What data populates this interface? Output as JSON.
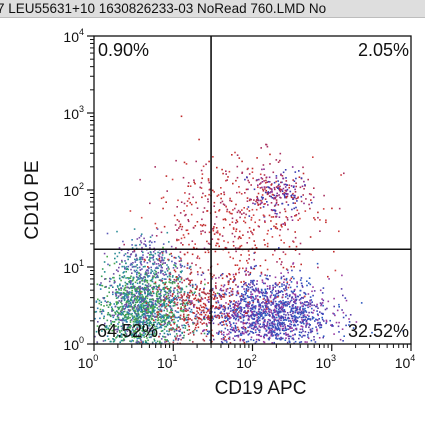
{
  "window": {
    "title": "7 LEU55631+10 1630826233-03 NoRead 760.LMD   No"
  },
  "chart_data": {
    "type": "scatter",
    "xlabel": "CD19 APC",
    "ylabel": "CD10 PE",
    "xscale": "log",
    "yscale": "log",
    "xlim": [
      1,
      10000
    ],
    "ylim": [
      1,
      10000
    ],
    "x_ticks": [
      {
        "base": "10",
        "exp": "0",
        "value": 1
      },
      {
        "base": "10",
        "exp": "1",
        "value": 10
      },
      {
        "base": "10",
        "exp": "2",
        "value": 100
      },
      {
        "base": "10",
        "exp": "3",
        "value": 1000
      },
      {
        "base": "10",
        "exp": "4",
        "value": 10000
      }
    ],
    "y_ticks": [
      {
        "base": "10",
        "exp": "0",
        "value": 1
      },
      {
        "base": "10",
        "exp": "1",
        "value": 10
      },
      {
        "base": "10",
        "exp": "2",
        "value": 100
      },
      {
        "base": "10",
        "exp": "3",
        "value": 1000
      },
      {
        "base": "10",
        "exp": "4",
        "value": 10000
      }
    ],
    "quadrant_gate": {
      "x": 30,
      "y": 17
    },
    "quadrants": [
      {
        "position": "upper-left",
        "label": "0.90%"
      },
      {
        "position": "upper-right",
        "label": "2.05%"
      },
      {
        "position": "lower-left",
        "label": "64.52%"
      },
      {
        "position": "lower-right",
        "label": "32.52%"
      }
    ],
    "populations": [
      {
        "center": [
          4,
          2.8
        ],
        "spread": [
          0.3,
          0.28
        ],
        "count": 1600,
        "colors": [
          "#1f8a8a",
          "#3a9c5a",
          "#2f7fb0",
          "#4aa84a",
          "#6a4fa0"
        ]
      },
      {
        "center": [
          5,
          12
        ],
        "spread": [
          0.22,
          0.2
        ],
        "count": 260,
        "colors": [
          "#7a4aa8",
          "#5a5ab8",
          "#2f8f9a"
        ]
      },
      {
        "center": [
          150,
          2.5
        ],
        "spread": [
          0.4,
          0.24
        ],
        "count": 1500,
        "colors": [
          "#3b45b8",
          "#5a3aa8",
          "#2d5ac0",
          "#9a3aa0"
        ]
      },
      {
        "center": [
          200,
          90
        ],
        "spread": [
          0.18,
          0.16
        ],
        "count": 220,
        "colors": [
          "#3a3ab0",
          "#8a2a90",
          "#b03050"
        ]
      },
      {
        "center": [
          60,
          40
        ],
        "spread": [
          0.55,
          0.45
        ],
        "count": 520,
        "colors": [
          "#c02a2a",
          "#a83060",
          "#d04040"
        ]
      },
      {
        "center": [
          20,
          3
        ],
        "spread": [
          0.3,
          0.25
        ],
        "count": 360,
        "colors": [
          "#c02a2a",
          "#b03a4a"
        ]
      }
    ],
    "grid": false,
    "legend": "none"
  }
}
